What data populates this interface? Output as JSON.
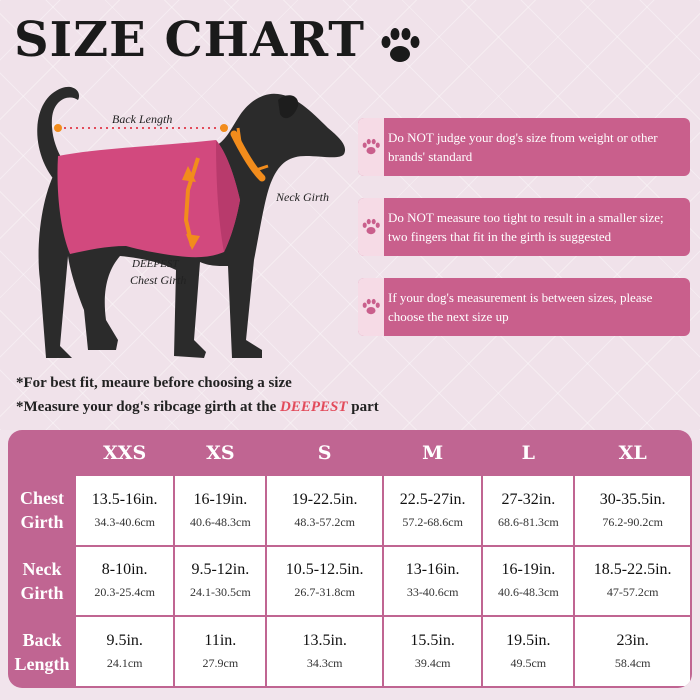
{
  "title": "SIZE CHART",
  "labels": {
    "back_length": "Back Length",
    "neck_girth": "Neck Girth",
    "chest_girth_line1": "DEEPEST",
    "chest_girth_line2": "Chest Girth"
  },
  "notes": [
    "Do NOT judge your dog's size from weight or other brands' standard",
    "Do NOT measure too tight to result in a smaller size; two fingers that fit in the girth is suggested",
    "If your dog's measurement is between sizes, please choose the next size up"
  ],
  "hints": {
    "line1": "*For best fit, meaure before choosing a size",
    "line2_prefix": "*Measure your dog's ribcage girth at the ",
    "line2_emphasis": "DEEPEST",
    "line2_suffix": " part"
  },
  "table": {
    "sizes": [
      "XXS",
      "XS",
      "S",
      "M",
      "L",
      "XL"
    ],
    "rows": [
      {
        "label_line1": "Chest",
        "label_line2": "Girth",
        "inches": [
          "13.5-16in.",
          "16-19in.",
          "19-22.5in.",
          "22.5-27in.",
          "27-32in.",
          "30-35.5in."
        ],
        "cm": [
          "34.3-40.6cm",
          "40.6-48.3cm",
          "48.3-57.2cm",
          "57.2-68.6cm",
          "68.6-81.3cm",
          "76.2-90.2cm"
        ]
      },
      {
        "label_line1": "Neck",
        "label_line2": "Girth",
        "inches": [
          "8-10in.",
          "9.5-12in.",
          "10.5-12.5in.",
          "13-16in.",
          "16-19in.",
          "18.5-22.5in."
        ],
        "cm": [
          "20.3-25.4cm",
          "24.1-30.5cm",
          "26.7-31.8cm",
          "33-40.6cm",
          "40.6-48.3cm",
          "47-57.2cm"
        ]
      },
      {
        "label_line1": "Back",
        "label_line2": "Length",
        "inches": [
          "9.5in.",
          "11in.",
          "13.5in.",
          "15.5in.",
          "19.5in.",
          "23in."
        ],
        "cm": [
          "24.1cm",
          "27.9cm",
          "34.3cm",
          "39.4cm",
          "49.5cm",
          "58.4cm"
        ]
      }
    ]
  },
  "colors": {
    "accent_pink": "#c95f8c",
    "table_pink": "#c06592",
    "emphasis_red": "#e24b5b",
    "coat_pink": "#d2497e",
    "dog_black": "#2b2b2b",
    "arrow_orange": "#f28c1c"
  },
  "icons": [
    "paw-icon"
  ]
}
